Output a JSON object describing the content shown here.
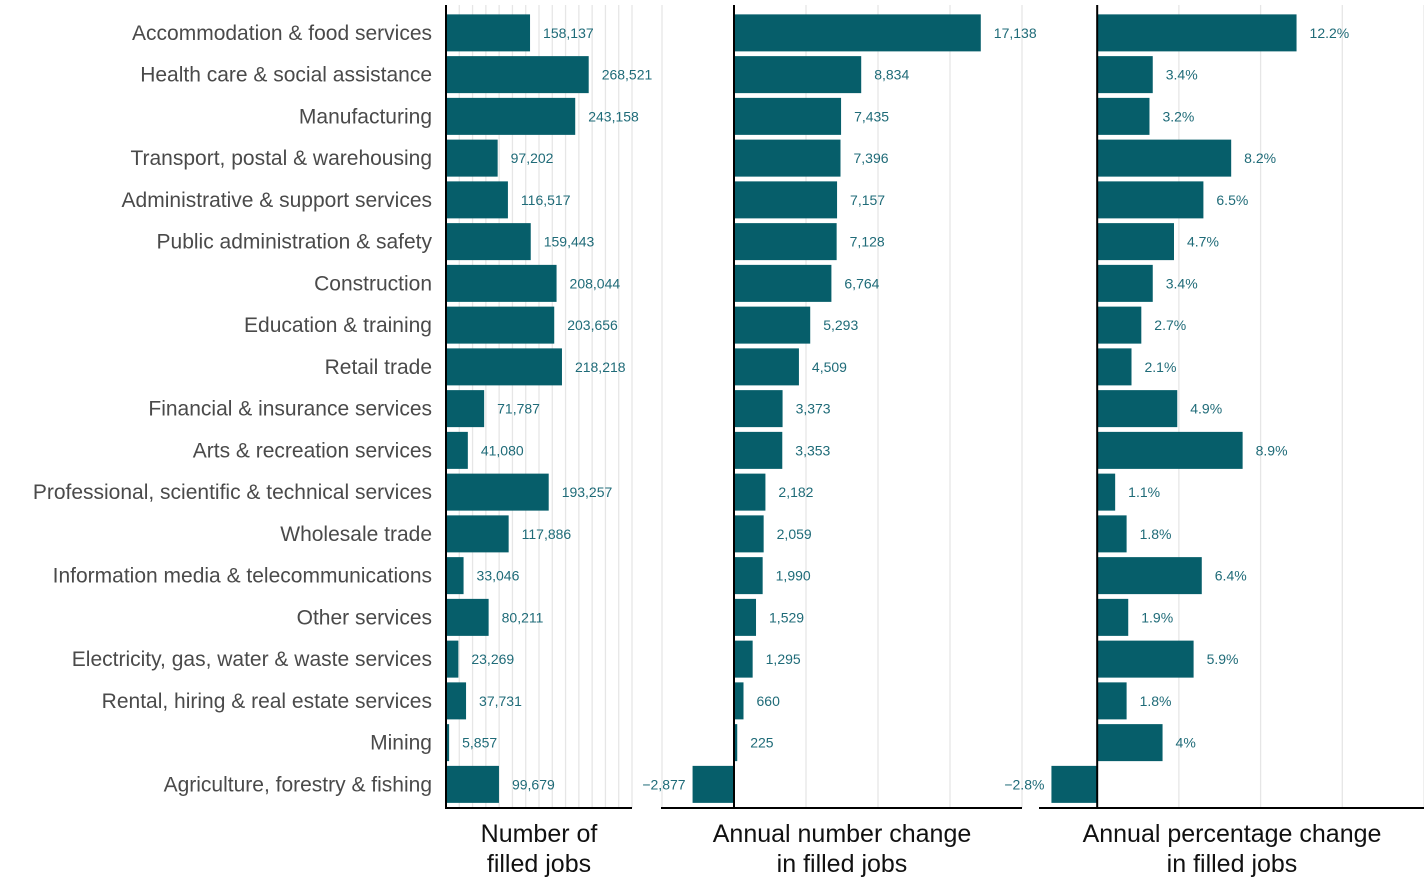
{
  "colors": {
    "bar": "#065e6a",
    "label": "#1f6b78",
    "grid": "#e6e6e6",
    "axis": "#000000",
    "category": "#4a4a4a"
  },
  "categories": [
    "Accommodation & food services",
    "Health care & social assistance",
    "Manufacturing",
    "Transport, postal & warehousing",
    "Administrative & support services",
    "Public administration & safety",
    "Construction",
    "Education & training",
    "Retail trade",
    "Financial & insurance services",
    "Arts & recreation services",
    "Professional, scientific & technical services",
    "Wholesale trade",
    "Information media & telecommunications",
    "Other services",
    "Electricity, gas, water & waste services",
    "Rental, hiring & real estate services",
    "Mining",
    "Agriculture, forestry & fishing"
  ],
  "chart_data": [
    {
      "type": "bar",
      "orientation": "horizontal",
      "xlabel": [
        "Number of",
        "filled jobs"
      ],
      "xlim": [
        0,
        350000
      ],
      "grid": true,
      "values": [
        158137,
        268521,
        243158,
        97202,
        116517,
        159443,
        208044,
        203656,
        218218,
        71787,
        41080,
        193257,
        117886,
        33046,
        80211,
        23269,
        37731,
        5857,
        99679
      ],
      "labels": [
        "158,137",
        "268,521",
        "243,158",
        "97,202",
        "116,517",
        "159,443",
        "208,044",
        "203,656",
        "218,218",
        "71,787",
        "41,080",
        "193,257",
        "117,886",
        "33,046",
        "80,211",
        "23,269",
        "37,731",
        "5,857",
        "99,679"
      ]
    },
    {
      "type": "bar",
      "orientation": "horizontal",
      "xlabel": [
        "Annual number change",
        "in filled jobs"
      ],
      "xlim": [
        -5000,
        20000
      ],
      "grid": true,
      "values": [
        17138,
        8834,
        7435,
        7396,
        7157,
        7128,
        6764,
        5293,
        4509,
        3373,
        3353,
        2182,
        2059,
        1990,
        1529,
        1295,
        660,
        225,
        -2877
      ],
      "labels": [
        "17,138",
        "8,834",
        "7,435",
        "7,396",
        "7,157",
        "7,128",
        "6,764",
        "5,293",
        "4,509",
        "3,373",
        "3,353",
        "2,182",
        "2,059",
        "1,990",
        "1,529",
        "1,295",
        "660",
        "225",
        "−2,877"
      ]
    },
    {
      "type": "bar",
      "orientation": "horizontal",
      "xlabel": [
        "Annual percentage change",
        "in filled jobs"
      ],
      "xlim": [
        -0.035,
        0.2
      ],
      "grid": true,
      "values": [
        0.122,
        0.034,
        0.032,
        0.082,
        0.065,
        0.047,
        0.034,
        0.027,
        0.021,
        0.049,
        0.089,
        0.011,
        0.018,
        0.064,
        0.019,
        0.059,
        0.018,
        0.04,
        -0.028
      ],
      "labels": [
        "12.2%",
        "3.4%",
        "3.2%",
        "8.2%",
        "6.5%",
        "4.7%",
        "3.4%",
        "2.7%",
        "2.1%",
        "4.9%",
        "8.9%",
        "1.1%",
        "1.8%",
        "6.4%",
        "1.9%",
        "5.9%",
        "1.8%",
        "4%",
        "−2.8%"
      ]
    }
  ]
}
